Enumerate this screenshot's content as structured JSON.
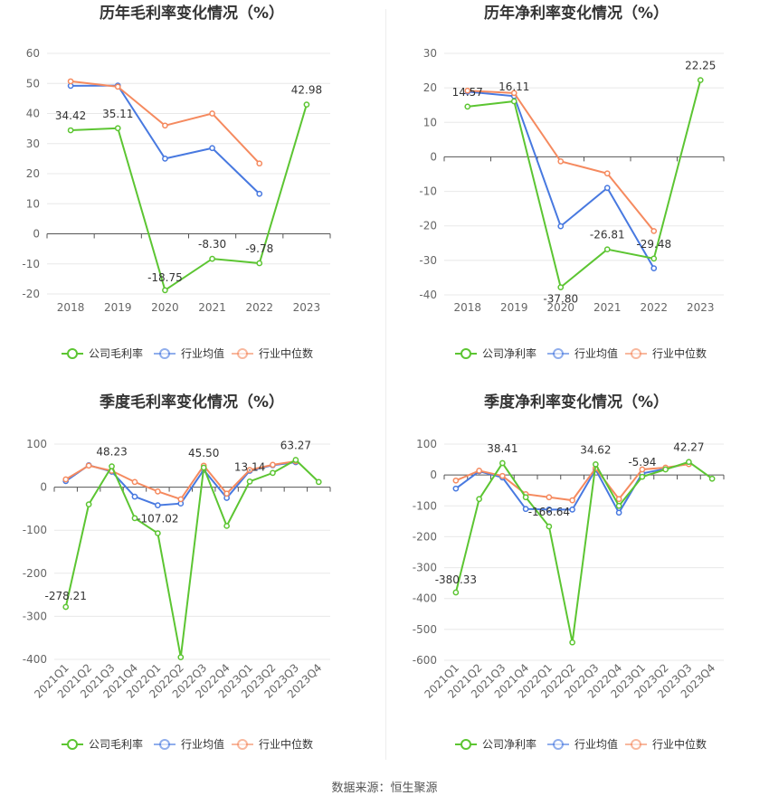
{
  "source_label": "数据来源：恒生聚源",
  "colors": {
    "company": "#5cc532",
    "avg": "#4879e0",
    "median": "#f58a5f"
  },
  "chart_data": [
    {
      "type": "line",
      "title": "历年毛利率变化情况（%）",
      "categories": [
        "2018",
        "2019",
        "2020",
        "2021",
        "2022",
        "2023"
      ],
      "ylim": [
        -20,
        60
      ],
      "yticks": [
        60,
        50,
        40,
        30,
        20,
        10,
        0,
        -10,
        -20
      ],
      "grid": true,
      "legend_position": "bottom",
      "series": [
        {
          "name": "公司毛利率",
          "key": "company",
          "values": [
            34.42,
            35.11,
            -18.75,
            -8.3,
            -9.78,
            42.98
          ],
          "labels": [
            "34.42",
            "35.11",
            "-18.75",
            "-8.30",
            "-9.78",
            "42.98"
          ]
        },
        {
          "name": "行业均值",
          "key": "avg",
          "values": [
            49.2,
            49.3,
            25.0,
            28.5,
            13.3,
            null
          ]
        },
        {
          "name": "行业中位数",
          "key": "median",
          "values": [
            50.7,
            48.9,
            36.0,
            40.0,
            23.4,
            null
          ]
        }
      ]
    },
    {
      "type": "line",
      "title": "历年净利率变化情况（%）",
      "categories": [
        "2018",
        "2019",
        "2020",
        "2021",
        "2022",
        "2023"
      ],
      "ylim": [
        -40,
        30
      ],
      "yticks": [
        30,
        20,
        10,
        0,
        -10,
        -20,
        -30,
        -40
      ],
      "grid": true,
      "legend_position": "bottom",
      "series": [
        {
          "name": "公司净利率",
          "key": "company",
          "values": [
            14.57,
            16.11,
            -37.8,
            -26.81,
            -29.48,
            22.25
          ],
          "labels": [
            "14.57",
            "16.11",
            "-37.80",
            "-26.81",
            "-29.48",
            "22.25"
          ]
        },
        {
          "name": "行业均值",
          "key": "avg",
          "values": [
            18.9,
            17.6,
            -20.1,
            -9.0,
            -32.3,
            null
          ]
        },
        {
          "name": "行业中位数",
          "key": "median",
          "values": [
            19.2,
            18.5,
            -1.3,
            -4.8,
            -21.5,
            null
          ]
        }
      ]
    },
    {
      "type": "line",
      "title": "季度毛利率变化情况（%）",
      "categories": [
        "2021Q1",
        "2021Q2",
        "2021Q3",
        "2021Q4",
        "2022Q1",
        "2022Q2",
        "2022Q3",
        "2022Q4",
        "2023Q1",
        "2023Q2",
        "2023Q3",
        "2023Q4"
      ],
      "ylim": [
        -400,
        100
      ],
      "yticks": [
        100,
        0,
        -100,
        -200,
        -300,
        -400
      ],
      "grid": true,
      "legend_position": "bottom",
      "series": [
        {
          "name": "公司毛利率",
          "key": "company",
          "values": [
            -278.21,
            -40,
            48.23,
            -72,
            -107.02,
            -395,
            45.5,
            -90,
            13.14,
            33,
            63.27,
            12
          ],
          "labels": [
            "-278.21",
            "",
            "48.23",
            "",
            "-107.02",
            "",
            "45.50",
            "",
            "13.14",
            "",
            "63.27",
            ""
          ]
        },
        {
          "name": "行业均值",
          "key": "avg",
          "values": [
            14,
            51,
            36,
            -22,
            -42,
            -38,
            40,
            -25,
            38,
            51,
            58,
            null
          ]
        },
        {
          "name": "行业中位数",
          "key": "median",
          "values": [
            18,
            50,
            38,
            12,
            -10,
            -28,
            50,
            -15,
            40,
            52,
            60,
            null
          ]
        }
      ]
    },
    {
      "type": "line",
      "title": "季度净利率变化情况（%）",
      "categories": [
        "2021Q1",
        "2021Q2",
        "2021Q3",
        "2021Q4",
        "2022Q1",
        "2022Q2",
        "2022Q3",
        "2022Q4",
        "2023Q1",
        "2023Q2",
        "2023Q3",
        "2023Q4"
      ],
      "ylim": [
        -600,
        100
      ],
      "yticks": [
        100,
        0,
        -100,
        -200,
        -300,
        -400,
        -500,
        -600
      ],
      "grid": true,
      "legend_position": "bottom",
      "series": [
        {
          "name": "公司净利率",
          "key": "company",
          "values": [
            -380.33,
            -78,
            38.41,
            -72,
            -166.64,
            -542,
            34.62,
            -100,
            -5.94,
            18,
            42.27,
            -12
          ],
          "labels": [
            "-380.33",
            "",
            "38.41",
            "",
            "-166.64",
            "",
            "34.62",
            "",
            "-5.94",
            "",
            "42.27",
            ""
          ]
        },
        {
          "name": "行业均值",
          "key": "avg",
          "values": [
            -44,
            12,
            -8,
            -110,
            -112,
            -112,
            18,
            -122,
            5,
            20,
            38,
            null
          ]
        },
        {
          "name": "行业中位数",
          "key": "median",
          "values": [
            -18,
            14,
            -3,
            -62,
            -72,
            -82,
            22,
            -78,
            18,
            24,
            35,
            null
          ]
        }
      ]
    }
  ]
}
